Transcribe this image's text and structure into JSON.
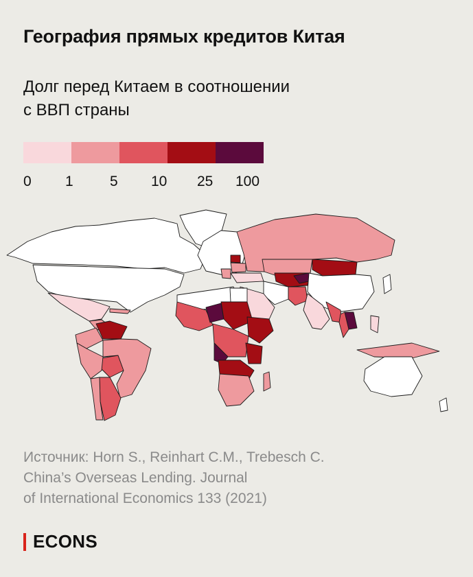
{
  "title": "География прямых кредитов Китая",
  "subtitle_line1": "Долг перед Китаем в соотношении",
  "subtitle_line2": "с ВВП страны",
  "legend": {
    "ticks": [
      "0",
      "1",
      "5",
      "10",
      "25",
      "100"
    ],
    "colors": [
      "#f9d8dc",
      "#ee9a9e",
      "#e0555e",
      "#a30d14",
      "#5b0a3c"
    ]
  },
  "source": {
    "line1": "Источник: Horn S., Reinhart C.M., Trebesch C.",
    "line2": "China’s Overseas Lending. Journal",
    "line3": "of International Economics 133 (2021)"
  },
  "brand": "ECONS"
}
